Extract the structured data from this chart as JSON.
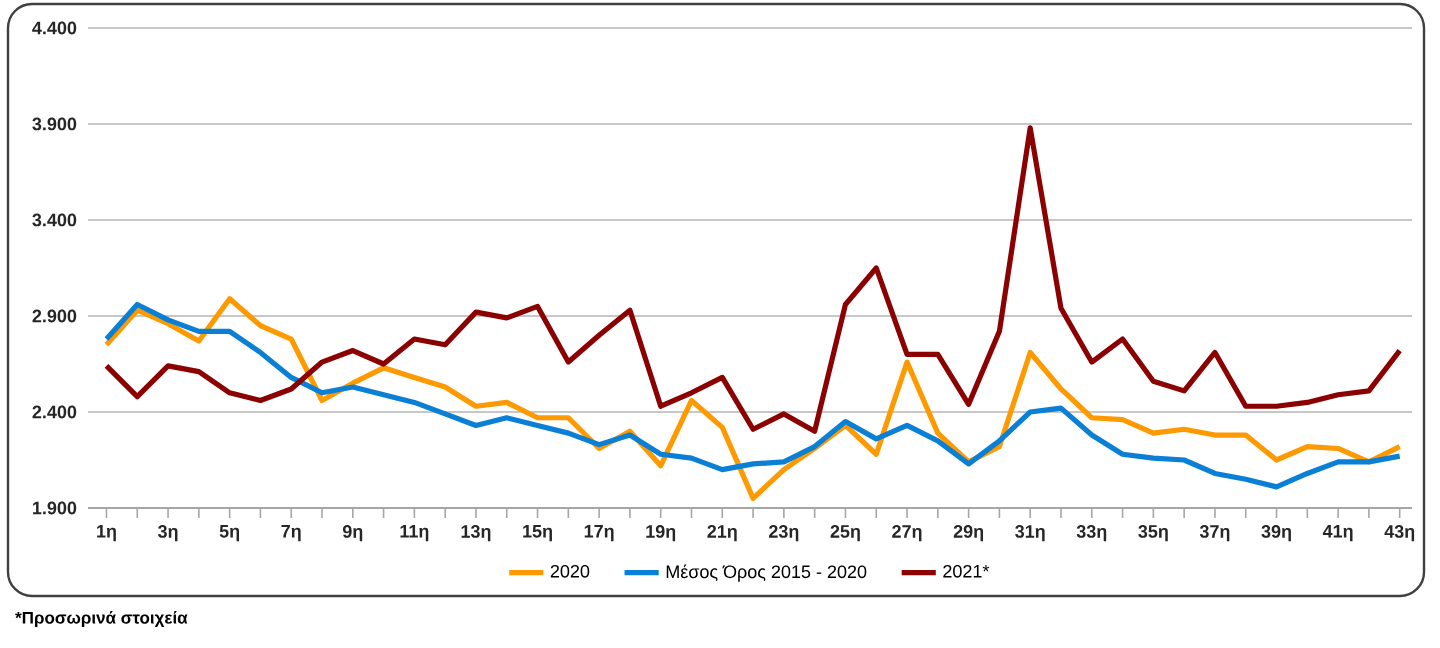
{
  "chart_data": {
    "type": "line",
    "categories": [
      "1η",
      null,
      "3η",
      null,
      "5η",
      null,
      "7η",
      null,
      "9η",
      null,
      "11η",
      null,
      "13η",
      null,
      "15η",
      null,
      "17η",
      null,
      "19η",
      null,
      "21η",
      null,
      "23η",
      null,
      "25η",
      null,
      "27η",
      null,
      "29η",
      null,
      "31η",
      null,
      "33η",
      null,
      "35η",
      null,
      "37η",
      null,
      "39η",
      null,
      "41η",
      null,
      "43η"
    ],
    "series": [
      {
        "name": "2020",
        "color": "#ff9900",
        "values": [
          2750,
          2930,
          2860,
          2770,
          2990,
          2850,
          2780,
          2460,
          2550,
          2630,
          2580,
          2530,
          2430,
          2450,
          2370,
          2370,
          2210,
          2300,
          2120,
          2460,
          2320,
          1950,
          2100,
          2210,
          2330,
          2180,
          2660,
          2290,
          2140,
          2220,
          2710,
          2520,
          2370,
          2360,
          2290,
          2310,
          2280,
          2280,
          2150,
          2220,
          2210,
          2140,
          2220
        ]
      },
      {
        "name": "Μέσος Όρος 2015 - 2020",
        "color": "#0a7fd6",
        "values": [
          2780,
          2960,
          2880,
          2820,
          2820,
          2710,
          2580,
          2500,
          2530,
          2490,
          2450,
          2390,
          2330,
          2370,
          2330,
          2290,
          2230,
          2280,
          2180,
          2160,
          2100,
          2130,
          2140,
          2220,
          2350,
          2260,
          2330,
          2250,
          2130,
          2250,
          2400,
          2420,
          2280,
          2180,
          2160,
          2150,
          2080,
          2050,
          2010,
          2080,
          2140,
          2140,
          2170
        ]
      },
      {
        "name": "2021*",
        "color": "#8b0000",
        "values": [
          2640,
          2480,
          2640,
          2610,
          2500,
          2460,
          2520,
          2660,
          2720,
          2650,
          2780,
          2750,
          2920,
          2890,
          2950,
          2660,
          2800,
          2930,
          2430,
          2500,
          2580,
          2310,
          2390,
          2300,
          2960,
          3150,
          2700,
          2700,
          2440,
          2820,
          3880,
          2940,
          2660,
          2780,
          2560,
          2510,
          2710,
          2430,
          2430,
          2450,
          2490,
          2510,
          2720
        ]
      }
    ],
    "ylim": [
      1900,
      4400
    ],
    "yticks": [
      {
        "value": 1900,
        "label": "1.900"
      },
      {
        "value": 2400,
        "label": "2.400"
      },
      {
        "value": 2900,
        "label": "2.900"
      },
      {
        "value": 3400,
        "label": "3.400"
      },
      {
        "value": 3900,
        "label": "3.900"
      },
      {
        "value": 4400,
        "label": "4.400"
      }
    ],
    "grid": "y",
    "legend": "bottom",
    "marker": "none",
    "line_style": "solid",
    "annotations": [
      "*Προσωρινά στοιχεία"
    ]
  }
}
